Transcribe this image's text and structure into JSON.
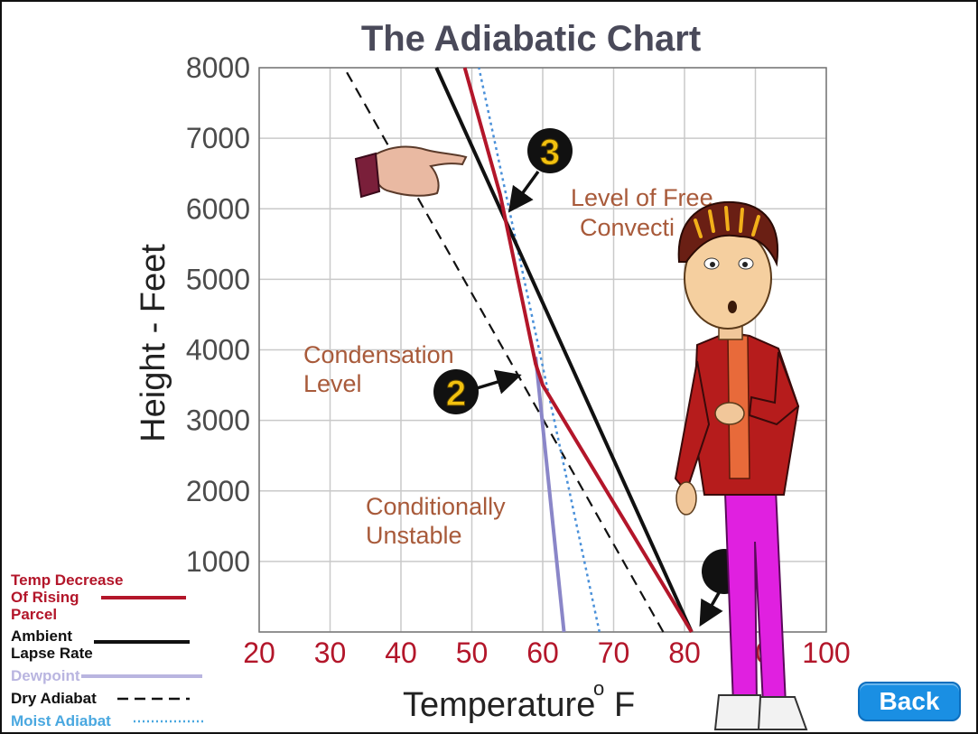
{
  "chart_data": {
    "type": "line",
    "title": "The Adiabatic Chart",
    "xlabel": "Temperature",
    "xlabel_unit": "oF",
    "ylabel": "Height - Feet",
    "xlim": [
      20,
      100
    ],
    "ylim": [
      0,
      8000
    ],
    "x_ticks": [
      "20",
      "30",
      "40",
      "50",
      "60",
      "70",
      "80",
      "90",
      "100"
    ],
    "y_ticks": [
      "1000",
      "2000",
      "3000",
      "4000",
      "5000",
      "6000",
      "7000",
      "8000"
    ],
    "grid": true,
    "series": [
      {
        "name": "Temp Decrease Of Rising Parcel",
        "color": "#b3162a",
        "style": "solid",
        "points": [
          [
            81,
            0
          ],
          [
            60,
            3500
          ],
          [
            59,
            3800
          ],
          [
            54,
            6200
          ],
          [
            49,
            8000
          ]
        ]
      },
      {
        "name": "Ambient Lapse Rate",
        "color": "#111111",
        "style": "solid",
        "points": [
          [
            81,
            0
          ],
          [
            45,
            8000
          ]
        ]
      },
      {
        "name": "Dewpoint",
        "color": "#8a86c8",
        "style": "solid",
        "points": [
          [
            63,
            0
          ],
          [
            59,
            3900
          ]
        ]
      },
      {
        "name": "Dry Adiabat",
        "color": "#111111",
        "style": "dashed",
        "points": [
          [
            77,
            0
          ],
          [
            32,
            8000
          ]
        ]
      },
      {
        "name": "Moist Adiabat",
        "color": "#4a90d9",
        "style": "dotted",
        "points": [
          [
            68,
            0
          ],
          [
            51,
            8000
          ]
        ]
      }
    ],
    "annotations": [
      {
        "id": "free-convection",
        "lines": [
          "Level of Free",
          "Convecti"
        ]
      },
      {
        "id": "condensation",
        "lines": [
          "Condensation",
          "Level"
        ]
      },
      {
        "id": "unstable",
        "lines": [
          "Conditionally",
          "Unstable"
        ]
      }
    ],
    "markers": [
      "3",
      "2",
      ""
    ]
  },
  "legend": [
    {
      "lines": [
        "Temp Decrease",
        "Of Rising",
        "Parcel"
      ],
      "color": "#b3162a",
      "style": "solid"
    },
    {
      "lines": [
        "Ambient",
        "Lapse Rate"
      ],
      "color": "#111111",
      "style": "solid"
    },
    {
      "lines": [
        "Dewpoint"
      ],
      "color": "#b9b5e0",
      "style": "solid"
    },
    {
      "lines": [
        "Dry Adiabat"
      ],
      "color": "#111111",
      "style": "dashed"
    },
    {
      "lines": [
        "Moist Adiabat"
      ],
      "color": "#4aa8e0",
      "style": "dotted"
    }
  ],
  "ui": {
    "back_label": "Back"
  },
  "characters": {
    "pointing_hand": "pointing-hand-icon",
    "presenter": "cartoon-presenter"
  }
}
